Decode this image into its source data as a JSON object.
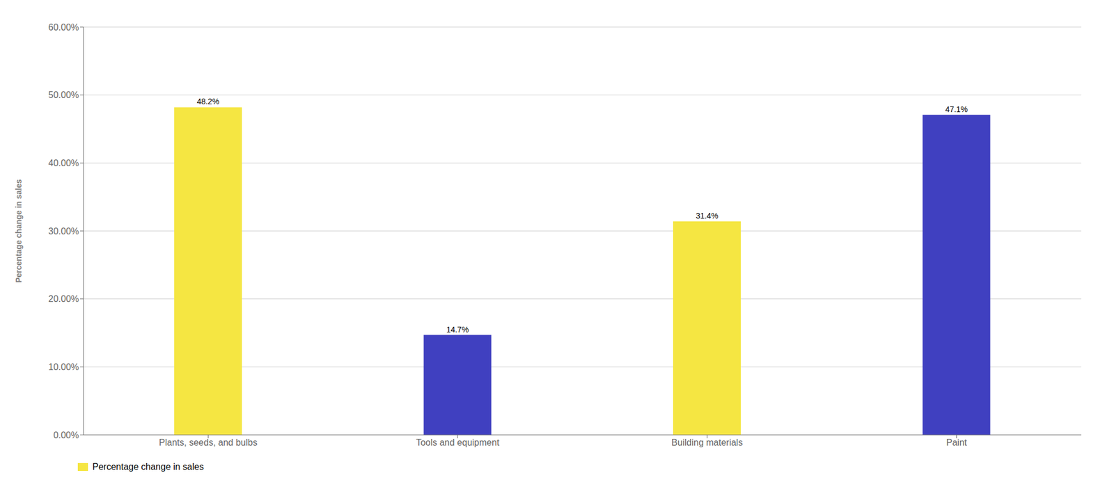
{
  "chart_data": {
    "type": "bar",
    "categories": [
      "Plants, seeds, and bulbs",
      "Tools and equipment",
      "Building materials",
      "Paint"
    ],
    "series": [
      {
        "name": "Percentage change in sales",
        "color": "#F5E642",
        "colors": [
          "#F5E642",
          "#4040C0",
          "#F5E642",
          "#4040C0"
        ],
        "values": [
          48.2,
          14.7,
          31.4,
          47.1
        ],
        "value_labels": [
          "48.2%",
          "14.7%",
          "31.4%",
          "47.1%"
        ]
      }
    ],
    "ylabel": "Percentage change in sales",
    "ylim": [
      0,
      60
    ],
    "yticks": [
      {
        "value": 0,
        "label": "0.00%"
      },
      {
        "value": 10,
        "label": "10.00%"
      },
      {
        "value": 20,
        "label": "20.00%"
      },
      {
        "value": 30,
        "label": "30.00%"
      },
      {
        "value": 40,
        "label": "40.00%"
      },
      {
        "value": 50,
        "label": "50.00%"
      },
      {
        "value": 60,
        "label": "60.00%"
      }
    ],
    "grid": true,
    "legend": "lower left",
    "data_labels": true
  }
}
